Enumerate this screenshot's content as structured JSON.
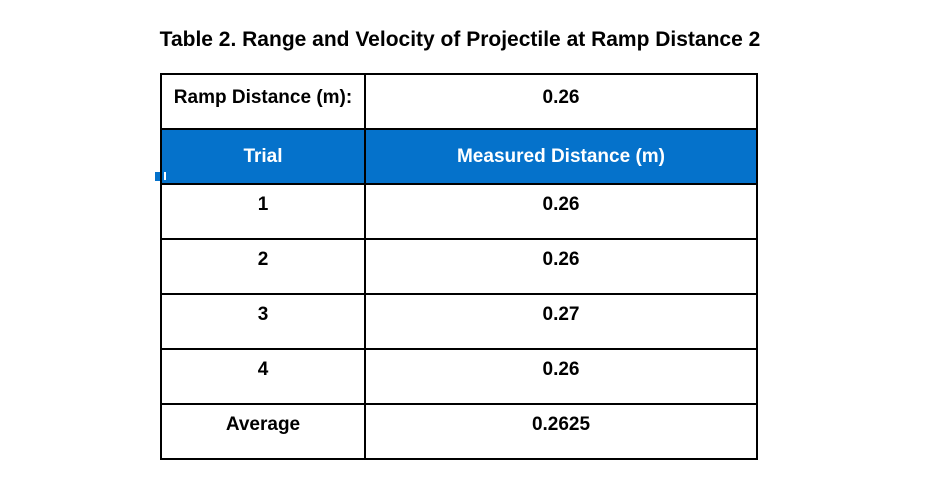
{
  "title": "Table 2. Range and Velocity of Projectile at Ramp Distance 2",
  "colors": {
    "header_bg": "#0572CB",
    "header_text": "#FFFFFF",
    "border": "#000000",
    "text": "#000000"
  },
  "table": {
    "info_row": {
      "label": "Ramp Distance (m):",
      "value": "0.26"
    },
    "columns": [
      "Trial",
      "Measured Distance (m)"
    ],
    "rows": [
      {
        "trial": "1",
        "distance": "0.26"
      },
      {
        "trial": "2",
        "distance": "0.26"
      },
      {
        "trial": "3",
        "distance": "0.27"
      },
      {
        "trial": "4",
        "distance": "0.26"
      },
      {
        "trial": "Average",
        "distance": "0.2625"
      }
    ]
  }
}
